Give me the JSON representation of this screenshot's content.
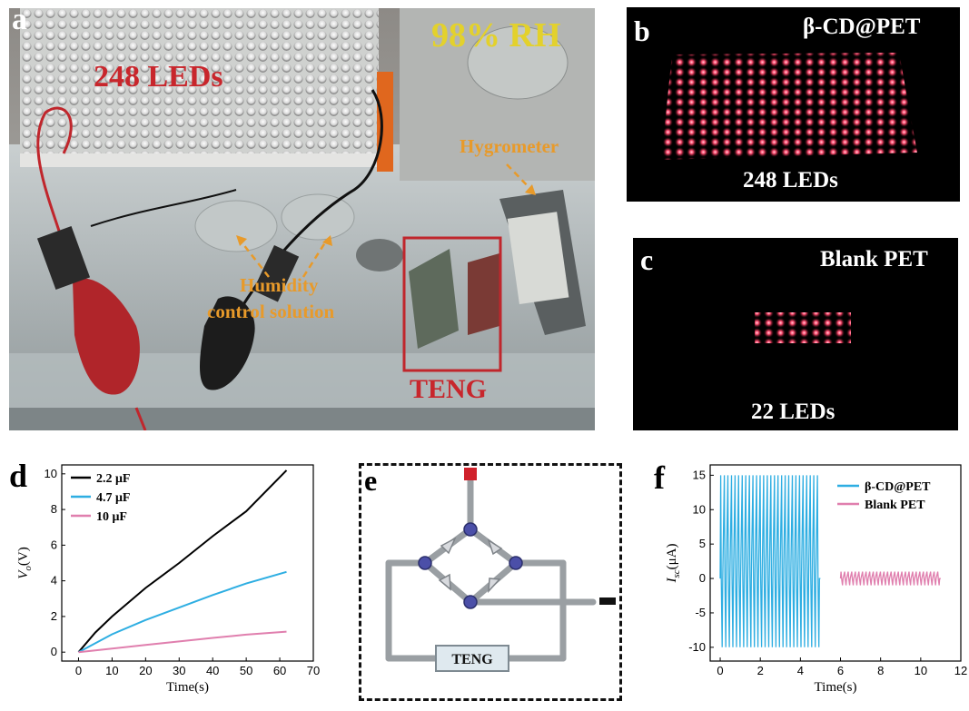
{
  "panel_a": {
    "label": "a",
    "leds_text": "248 LEDs",
    "rh_text": "98% RH",
    "hygrometer_text": "Hygrometer",
    "humidity_line1": "Humidity",
    "humidity_line2": "control solution",
    "teng_text": "TENG"
  },
  "panel_b": {
    "label": "b",
    "title": "β-CD@PET",
    "caption": "248 LEDs"
  },
  "panel_c": {
    "label": "c",
    "title": "Blank PET",
    "caption": "22 LEDs"
  },
  "panel_e": {
    "label": "e",
    "teng_text": "TENG",
    "plus": "+",
    "minus": "−"
  },
  "colors": {
    "black": "#000000",
    "cyan": "#2eaee2",
    "pink": "#e07fae",
    "red": "#c8262c",
    "orange": "#e89a2a",
    "yellow": "#e3d12c"
  },
  "chart_data": [
    {
      "label": "d",
      "type": "line",
      "xlabel": "Time(s)",
      "ylabel": "V_o(V)",
      "xlim": [
        -5,
        70
      ],
      "ylim": [
        -0.5,
        10.5
      ],
      "xticks": [
        0,
        10,
        20,
        30,
        40,
        50,
        60,
        70
      ],
      "yticks": [
        0,
        2,
        4,
        6,
        8,
        10
      ],
      "legend_position": "top-left",
      "series": [
        {
          "name": "2.2 μF",
          "color": "#000000",
          "x": [
            0,
            5,
            10,
            20,
            30,
            40,
            50,
            62
          ],
          "y": [
            0,
            1.1,
            2.0,
            3.6,
            5.0,
            6.5,
            7.9,
            10.2
          ]
        },
        {
          "name": "4.7 μF",
          "color": "#2eaee2",
          "x": [
            0,
            10,
            20,
            30,
            40,
            50,
            62
          ],
          "y": [
            0,
            1.0,
            1.8,
            2.5,
            3.2,
            3.85,
            4.5
          ]
        },
        {
          "name": "10  μF",
          "color": "#e07fae",
          "x": [
            0,
            10,
            20,
            30,
            40,
            50,
            62
          ],
          "y": [
            0,
            0.2,
            0.4,
            0.6,
            0.8,
            0.98,
            1.15
          ]
        }
      ]
    },
    {
      "label": "f",
      "type": "line",
      "xlabel": "Time(s)",
      "ylabel": "I_sc(μA)",
      "xlim": [
        -0.5,
        12
      ],
      "ylim": [
        -12,
        16.5
      ],
      "xticks": [
        0,
        2,
        4,
        6,
        8,
        10,
        12
      ],
      "yticks": [
        -10,
        -5,
        0,
        5,
        10,
        15
      ],
      "legend_position": "top-right",
      "series": [
        {
          "name": "β-CD@PET",
          "color": "#2eaee2",
          "x_start": 0,
          "x_end": 5,
          "peak_high": 15,
          "peak_low": -10,
          "cycles": 28
        },
        {
          "name": "Blank PET",
          "color": "#e07fae",
          "x_start": 6,
          "x_end": 11,
          "peak_high": 1,
          "peak_low": -1,
          "cycles": 28
        }
      ]
    }
  ]
}
